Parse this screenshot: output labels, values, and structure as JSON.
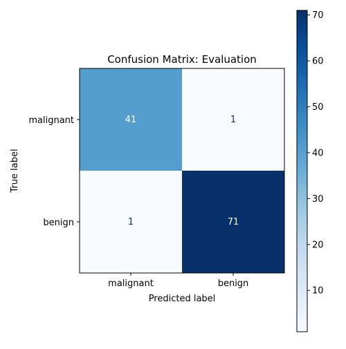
{
  "chart_data": {
    "type": "heatmap",
    "title": "Confusion Matrix: Evaluation",
    "xlabel": "Predicted label",
    "ylabel": "True label",
    "x_categories": [
      "malignant",
      "benign"
    ],
    "y_categories": [
      "malignant",
      "benign"
    ],
    "values": [
      [
        41,
        1
      ],
      [
        1,
        71
      ]
    ],
    "colormap": "Blues",
    "colorbar": {
      "range": [
        1,
        71
      ],
      "ticks": [
        10,
        20,
        30,
        40,
        50,
        60,
        70
      ]
    },
    "colors": {
      "dark_cell_text": "#ffffff",
      "light_cell_text": "#08306b"
    }
  }
}
